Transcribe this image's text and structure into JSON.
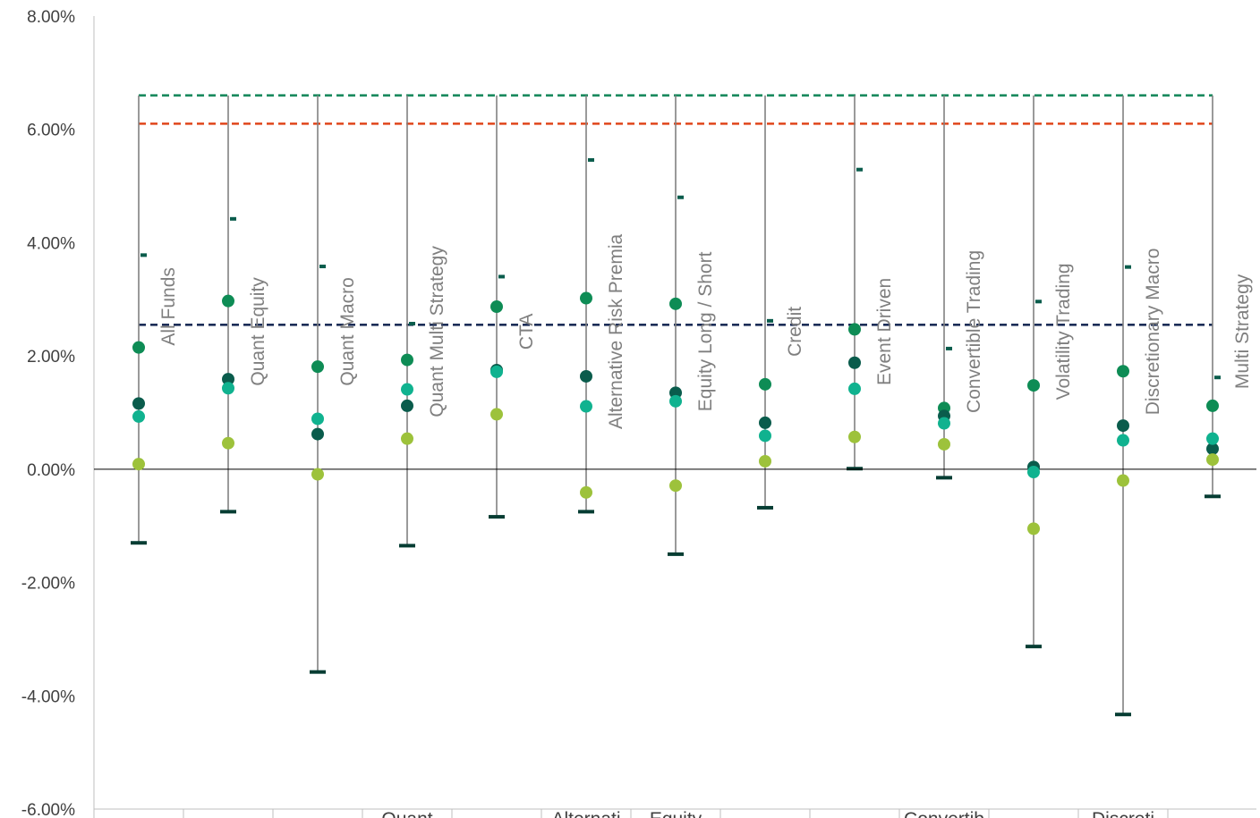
{
  "chart_data": {
    "type": "scatter",
    "title": "",
    "xlabel": "",
    "ylabel": "",
    "ylim": [
      -0.06,
      0.08
    ],
    "y_ticks": [
      "8.00%",
      "6.00%",
      "4.00%",
      "2.00%",
      "0.00%",
      "-2.00%",
      "-4.00%",
      "-6.00%"
    ],
    "y_tick_values": [
      0.08,
      0.06,
      0.04,
      0.02,
      0.0,
      -0.02,
      -0.04,
      -0.06
    ],
    "categories": [
      "All Funds",
      "Quant Equity",
      "Quant Macro",
      "Quant Multi Strategy",
      "CTA",
      "Alternative Risk Premia",
      "Equity Long / Short",
      "Credit",
      "Event Driven",
      "Convertible Trading",
      "Volatility Trading",
      "Discretionary Macro",
      "Multi Strategy"
    ],
    "bottom_axis_labels": [
      "",
      "",
      "",
      "Quant",
      "",
      "Alternati",
      "Equity",
      "",
      "",
      "Convertib",
      "",
      "Discreti",
      ""
    ],
    "colors": {
      "dark_green": "#0e8c55",
      "teal_dark": "#0a5c4c",
      "teal_light": "#10b28f",
      "lime": "#9dc23b",
      "cap_dark": "#063d33",
      "whisker": "#808080",
      "ref_green": "#1a8a5e",
      "ref_orange": "#e0461b",
      "ref_navy": "#1c2d57"
    },
    "reference_lines": [
      {
        "value": 0.066,
        "color": "#1a8a5e"
      },
      {
        "value": 0.061,
        "color": "#e0461b"
      },
      {
        "value": 0.0255,
        "color": "#1c2d57"
      }
    ],
    "whisker_top": 0.066,
    "series": [
      {
        "color": "#0e8c55",
        "values": [
          0.0215,
          0.0297,
          0.0181,
          0.0193,
          0.0287,
          0.0302,
          0.0292,
          0.015,
          0.0247,
          0.0108,
          0.0148,
          0.0173,
          0.0112
        ]
      },
      {
        "color": "#0a5c4c",
        "values": [
          0.0116,
          0.0159,
          0.0062,
          0.0112,
          0.0175,
          0.0164,
          0.0135,
          0.0082,
          0.0188,
          0.0094,
          0.0004,
          0.0077,
          0.0036
        ]
      },
      {
        "color": "#10b28f",
        "values": [
          0.0093,
          0.0143,
          0.0089,
          0.0141,
          0.0172,
          0.0111,
          0.012,
          0.0059,
          0.0142,
          0.0081,
          -0.0005,
          0.0051,
          0.0054
        ]
      },
      {
        "color": "#9dc23b",
        "values": [
          0.0009,
          0.0046,
          -0.0009,
          0.0054,
          0.0097,
          -0.0041,
          -0.0029,
          0.0014,
          0.0057,
          0.0044,
          -0.0105,
          -0.002,
          0.0017
        ]
      }
    ],
    "upper_marks": [
      0.0378,
      0.0442,
      0.0358,
      0.0257,
      0.034,
      0.0546,
      0.048,
      0.0262,
      0.0529,
      0.0213,
      0.0296,
      0.0357,
      0.0162
    ],
    "lower_marks": [
      -0.013,
      -0.0075,
      -0.0358,
      -0.0135,
      -0.0084,
      -0.0075,
      -0.015,
      -0.0068,
      0.0001,
      -0.0015,
      -0.0313,
      -0.0433,
      -0.0048
    ]
  }
}
